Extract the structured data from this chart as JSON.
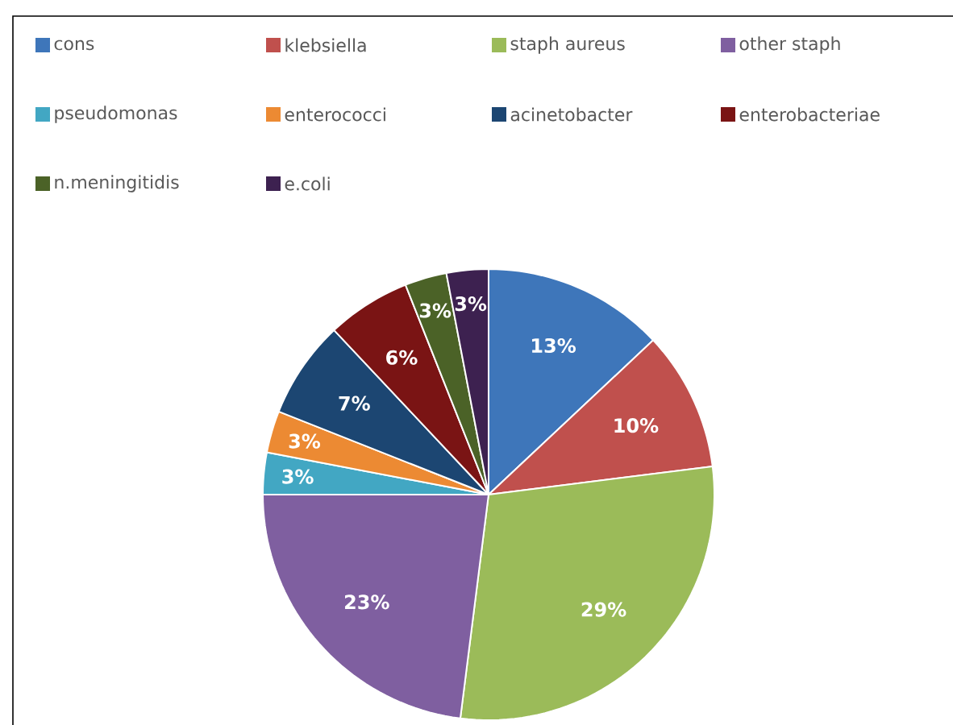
{
  "chart_data": {
    "type": "pie",
    "categories": [
      "cons",
      "klebsiella",
      "staph aureus",
      "other staph",
      "pseudomonas",
      "enterococci",
      "acinetobacter",
      "enterobacteriae",
      "n.meningitidis",
      "e.coli"
    ],
    "values": [
      13,
      10,
      29,
      23,
      3,
      3,
      7,
      6,
      3,
      3
    ],
    "value_labels": [
      "13%",
      "10%",
      "29%",
      "23%",
      "3%",
      "3%",
      "7%",
      "6%",
      "3%",
      "3%"
    ],
    "colors": [
      "#3e76ba",
      "#c0504d",
      "#9bbb59",
      "#7f5fa0",
      "#42a7c3",
      "#ec8a33",
      "#1c4672",
      "#7a1414",
      "#4b6227",
      "#3d2150"
    ],
    "legend": "top"
  }
}
